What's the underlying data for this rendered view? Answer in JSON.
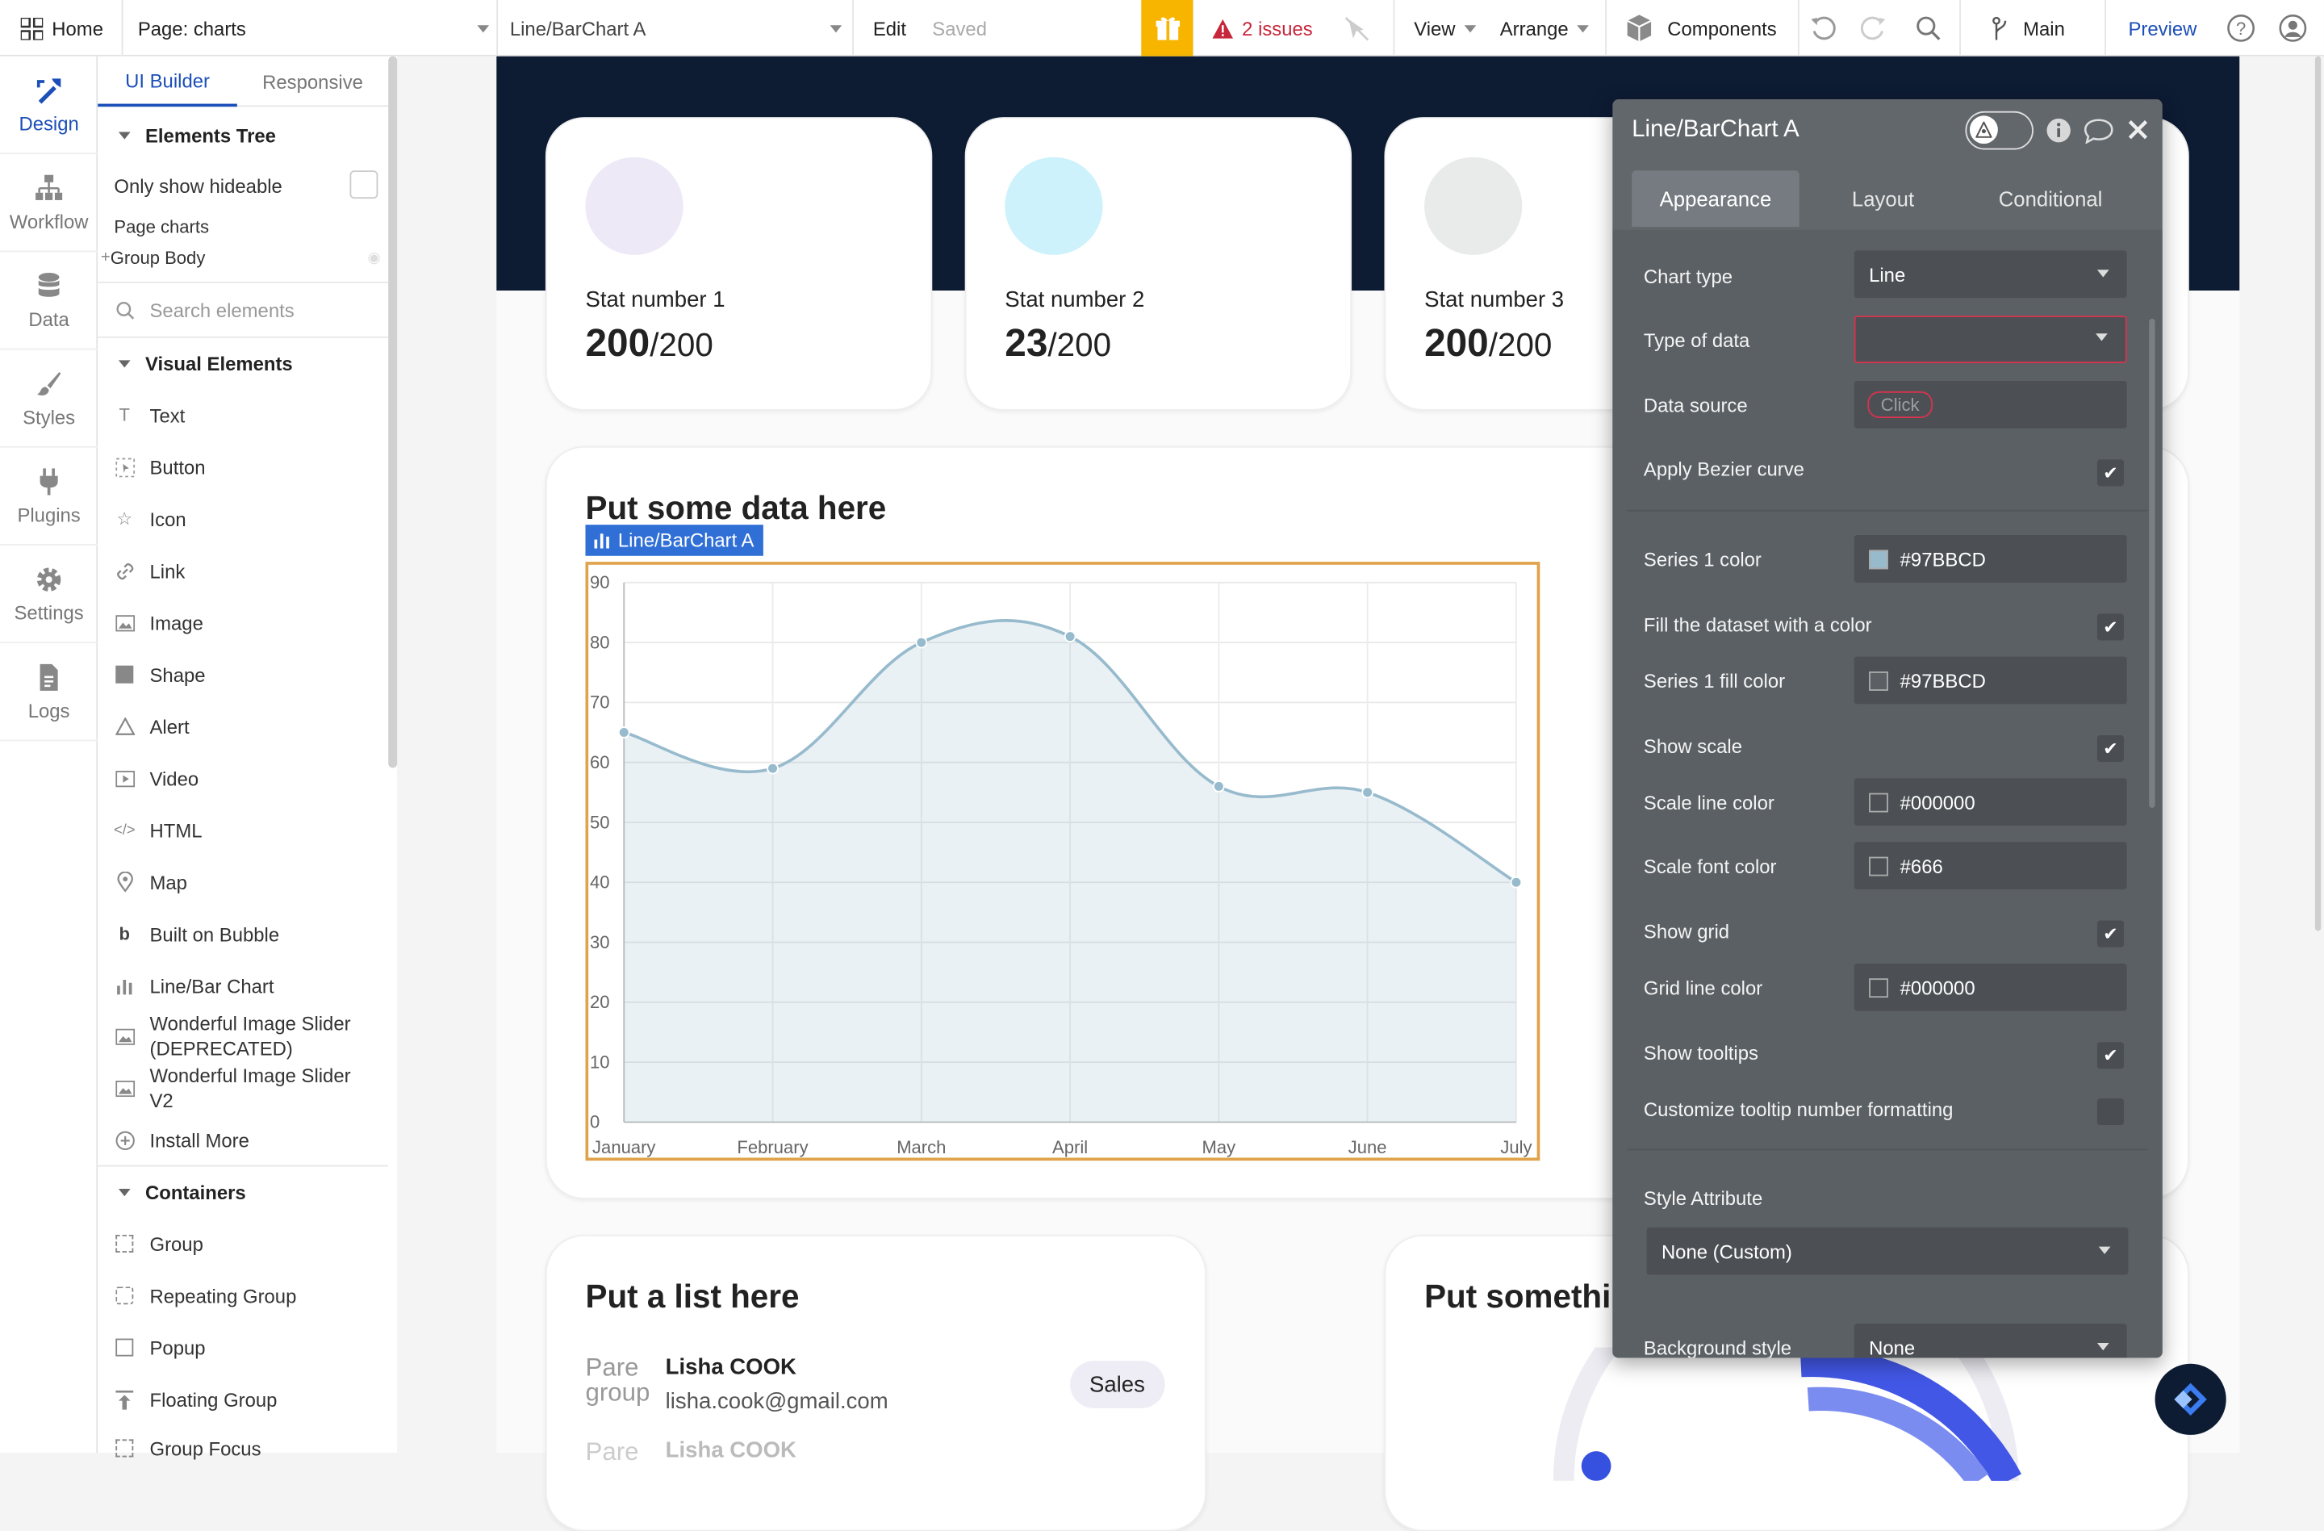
{
  "topbar": {
    "home": "Home",
    "page_select": "Page: charts",
    "element_select": "Line/BarChart A",
    "edit": "Edit",
    "saved": "Saved",
    "issues": "2 issues",
    "view": "View",
    "arrange": "Arrange",
    "components": "Components",
    "branch": "Main",
    "preview": "Preview"
  },
  "rail": [
    {
      "label": "Design",
      "icon": "design-icon"
    },
    {
      "label": "Workflow",
      "icon": "workflow-icon"
    },
    {
      "label": "Data",
      "icon": "database-icon"
    },
    {
      "label": "Styles",
      "icon": "brush-icon"
    },
    {
      "label": "Plugins",
      "icon": "plug-icon"
    },
    {
      "label": "Settings",
      "icon": "gear-icon"
    },
    {
      "label": "Logs",
      "icon": "document-icon"
    }
  ],
  "palette": {
    "tab_builder": "UI Builder",
    "tab_responsive": "Responsive",
    "elements_tree": "Elements Tree",
    "only_hideable": "Only show hideable",
    "tree_page": "Page charts",
    "tree_group": "Group Body",
    "search_placeholder": "Search elements",
    "visual_title": "Visual Elements",
    "visual_items": [
      "Text",
      "Button",
      "Icon",
      "Link",
      "Image",
      "Shape",
      "Alert",
      "Video",
      "HTML",
      "Map",
      "Built on Bubble",
      "Line/Bar Chart",
      "Wonderful Image Slider (DEPRECATED)",
      "Wonderful Image Slider V2",
      "Install More"
    ],
    "containers_title": "Containers",
    "container_items": [
      "Group",
      "Repeating Group",
      "Popup",
      "Floating Group",
      "Group Focus"
    ]
  },
  "stats": [
    {
      "label": "Stat number 1",
      "value": "200",
      "total": "/200",
      "color": "#ede9f7"
    },
    {
      "label": "Stat number 2",
      "value": "23",
      "total": "/200",
      "color": "#cdf2fb"
    },
    {
      "label": "Stat number 3",
      "value": "200",
      "total": "/200",
      "color": "#e8ebea"
    }
  ],
  "chart_card": {
    "title": "Put some data here",
    "element_tag": "Line/BarChart A"
  },
  "chart_data": {
    "type": "line",
    "categories": [
      "January",
      "February",
      "March",
      "April",
      "May",
      "June",
      "July"
    ],
    "series": [
      {
        "values": [
          65,
          59,
          80,
          81,
          56,
          55,
          40
        ],
        "color": "#97BBCD",
        "fill": "#97BBCD"
      }
    ],
    "yticks": [
      0,
      10,
      20,
      30,
      40,
      50,
      60,
      70,
      80,
      90
    ],
    "ylim": [
      0,
      90
    ],
    "grid": true,
    "bezier": true
  },
  "list_card": {
    "title": "Put a list here",
    "items": [
      {
        "name": "Lisha COOK",
        "email": "lisha.cook@gmail.com",
        "badge": "Sales"
      },
      {
        "name": "Lisha COOK",
        "email": "",
        "badge": ""
      }
    ]
  },
  "other_card": {
    "title": "Put somethi"
  },
  "editor": {
    "title": "Line/BarChart A",
    "tabs": [
      "Appearance",
      "Layout",
      "Conditional"
    ],
    "chart_type_label": "Chart type",
    "chart_type_value": "Line",
    "type_of_data_label": "Type of data",
    "data_source_label": "Data source",
    "data_source_click": "Click",
    "bezier_label": "Apply Bezier curve",
    "series1_color_label": "Series 1 color",
    "series1_color_value": "#97BBCD",
    "fill_label": "Fill the dataset with a color",
    "series1_fill_label": "Series 1 fill color",
    "series1_fill_value": "#97BBCD",
    "show_scale_label": "Show scale",
    "scale_line_label": "Scale line color",
    "scale_line_value": "#000000",
    "scale_font_label": "Scale font color",
    "scale_font_value": "#666",
    "show_grid_label": "Show grid",
    "grid_line_label": "Grid line color",
    "grid_line_value": "#000000",
    "tooltips_label": "Show tooltips",
    "tooltip_format_label": "Customize tooltip number formatting",
    "style_attr_label": "Style Attribute",
    "style_attr_value": "None (Custom)",
    "bg_style_label": "Background style",
    "bg_style_value": "None"
  }
}
